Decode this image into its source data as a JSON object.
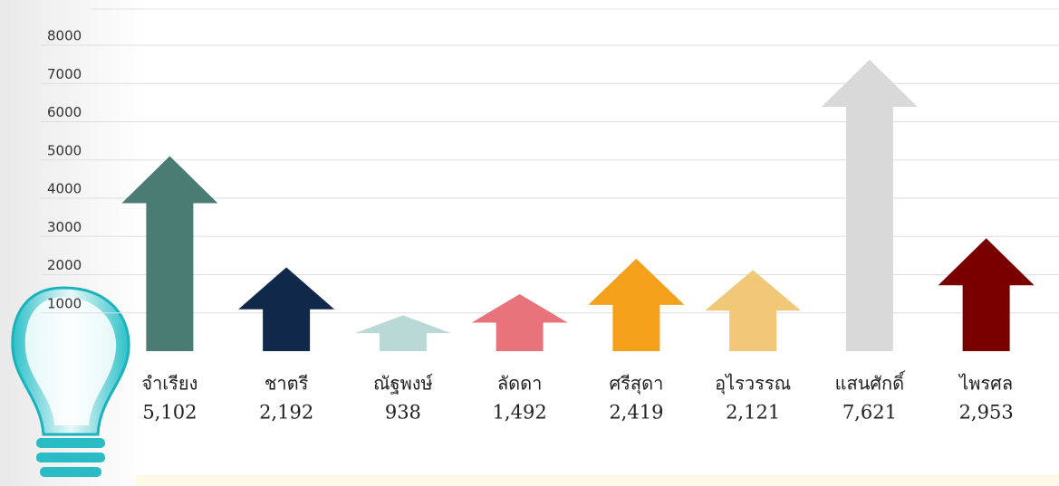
{
  "chart_data": {
    "type": "bar",
    "categories": [
      "จำเรียง",
      "ชาตรี",
      "ณัฐพงษ์",
      "ลัดดา",
      "ศรีสุดา",
      "อุไรวรรณ",
      "แสนศักดิ์",
      "ไพรศล"
    ],
    "values": [
      5102,
      2192,
      938,
      1492,
      2419,
      2121,
      7621,
      2953
    ],
    "value_labels": [
      "5,102",
      "2,192",
      "938",
      "1,492",
      "2,419",
      "2,121",
      "7,621",
      "2,953"
    ],
    "colors": [
      "#4a7c74",
      "#10294a",
      "#b9d9d6",
      "#e8737a",
      "#f5a01a",
      "#f0c878",
      "#d9d9d9",
      "#7a0000"
    ],
    "ylim": [
      0,
      8000
    ],
    "yticks": [
      1000,
      2000,
      3000,
      4000,
      5000,
      6000,
      7000,
      8000
    ],
    "grid": true
  }
}
